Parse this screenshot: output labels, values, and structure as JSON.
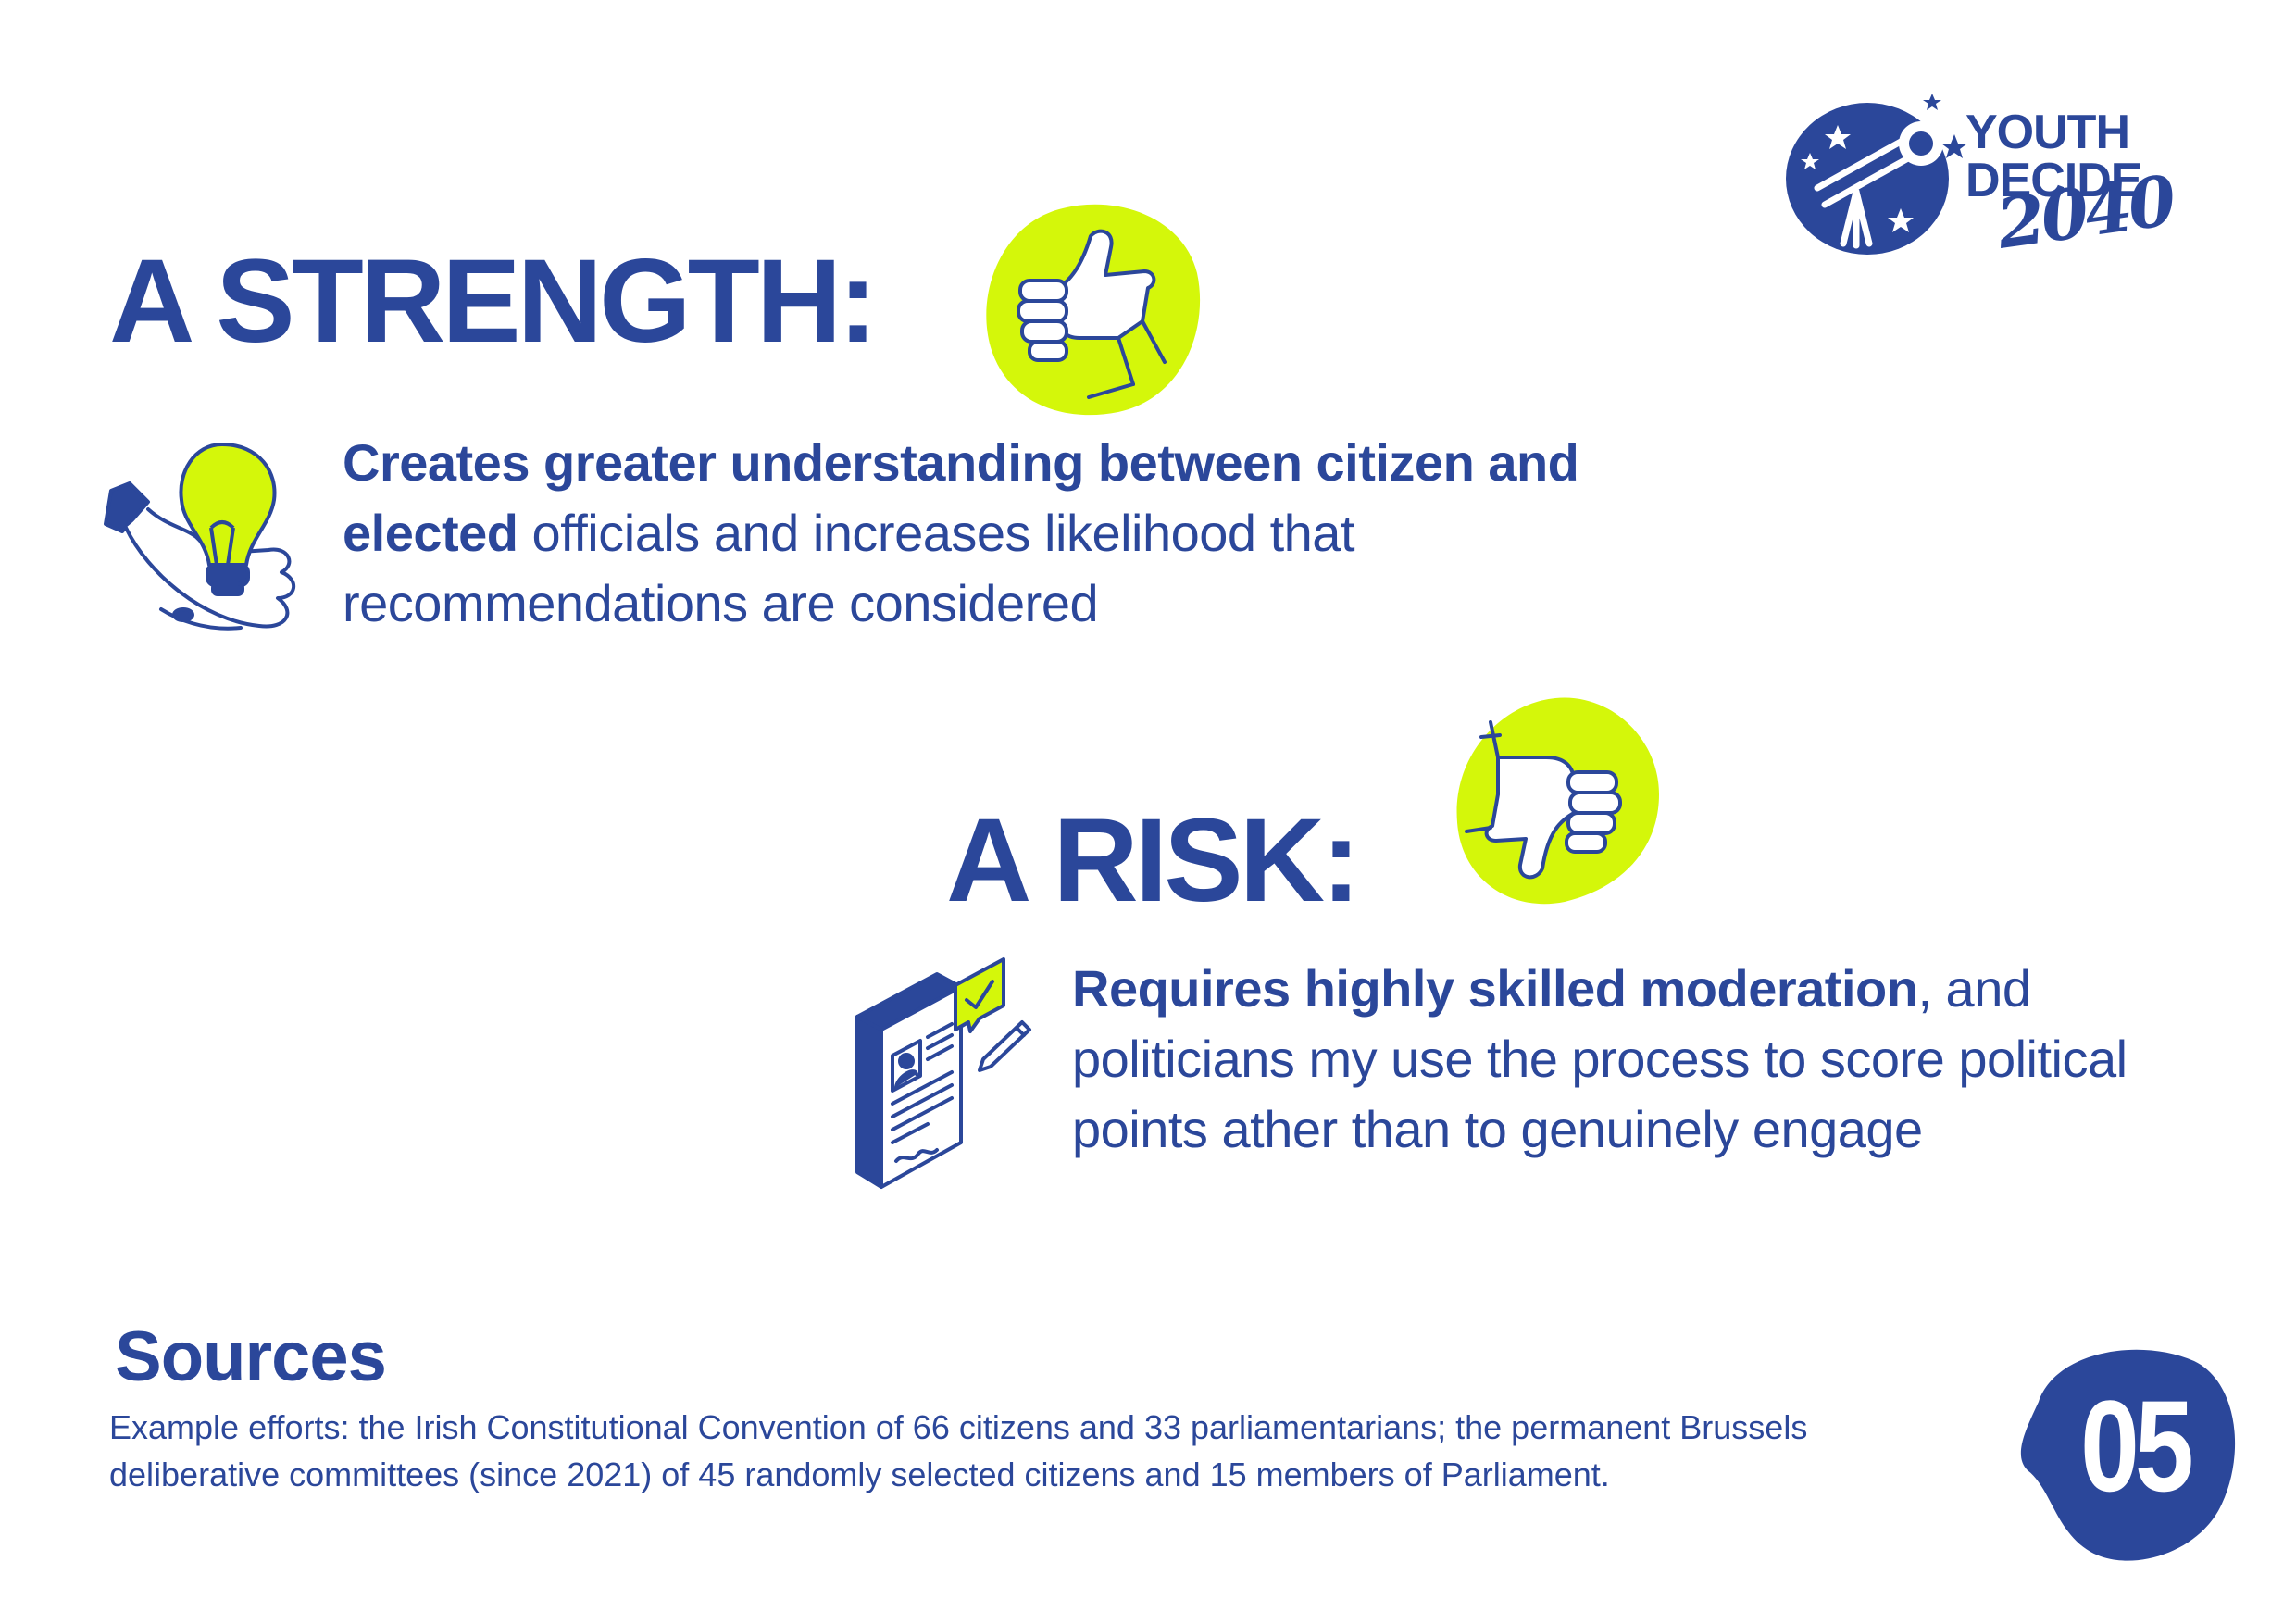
{
  "logo": {
    "line1": "YOUTH",
    "line2": "DECIDE",
    "year": "2040"
  },
  "strength": {
    "heading": "A STRENGTH:",
    "bold_text": "Creates greater understanding between citizen and elected",
    "rest_text": " officials and increases likelihood that recommendations are considered"
  },
  "risk": {
    "heading": "A RISK:",
    "bold_text": "Requires highly skilled moderation",
    "rest_text": ", and politicians my use the process to score political points ather than to genuinely engage"
  },
  "sources": {
    "title": "Sources",
    "text": "Example efforts: the Irish Constitutional Convention of 66 citizens and 33 parliamentarians; the permanent Brussels deliberative committees (since 2021) of 45 randomly selected citizens and 15 members of Parliament."
  },
  "page_number": "05",
  "colors": {
    "brand_blue": "#2b479a",
    "accent_lime": "#d4f70a",
    "background": "#ffffff"
  },
  "icons": {
    "thumbs_up": "thumbs-up-icon",
    "thumbs_down": "thumbs-down-icon",
    "lightbulb_hand": "lightbulb-hand-icon",
    "document_check": "document-check-icon",
    "telescope_logo": "telescope-logo-icon"
  }
}
